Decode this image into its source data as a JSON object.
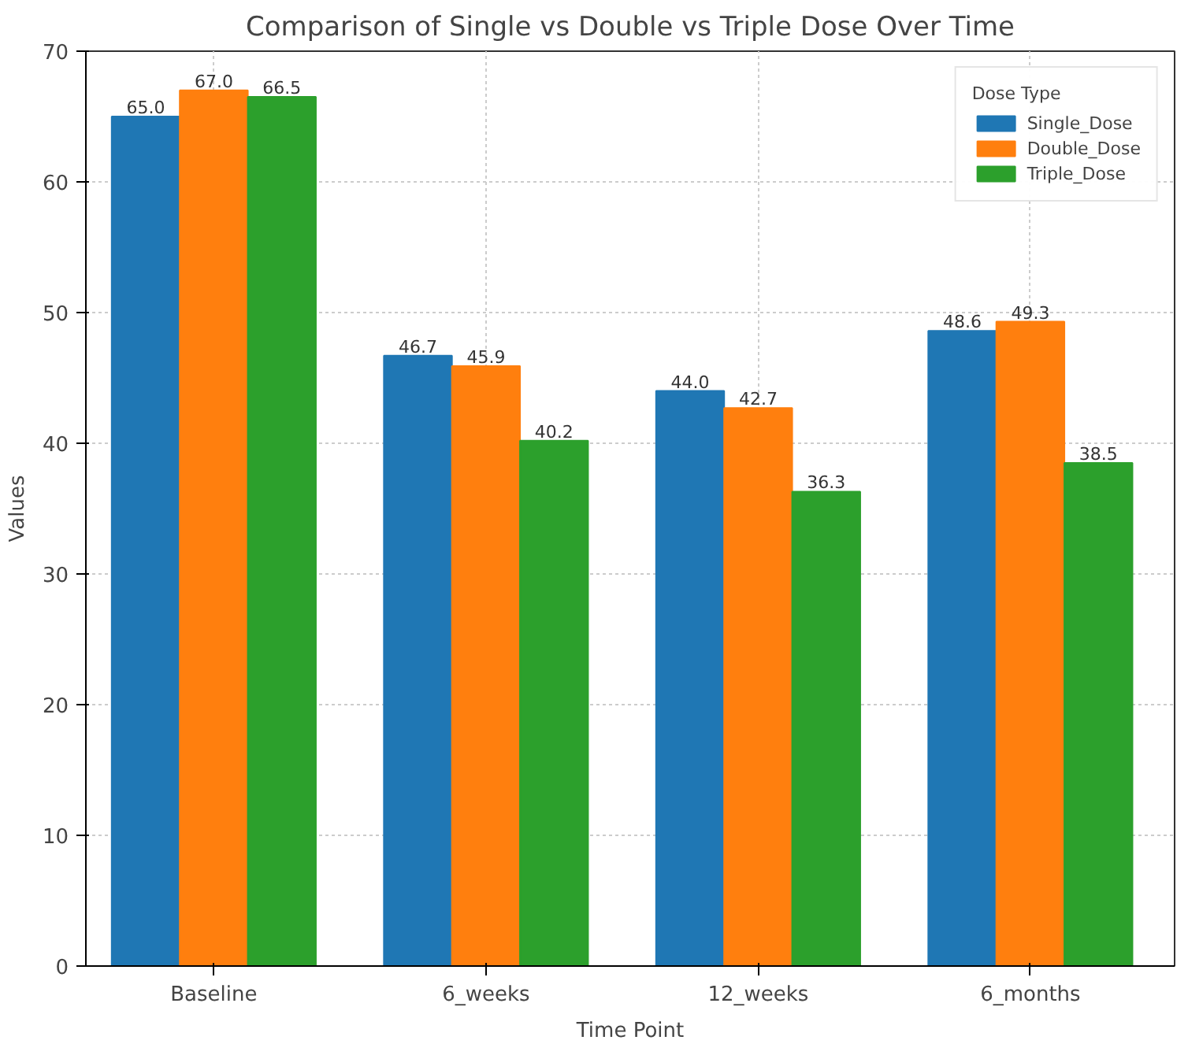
{
  "chart_data": {
    "type": "bar",
    "title": "Comparison of Single vs Double vs Triple Dose Over Time",
    "xlabel": "Time Point",
    "ylabel": "Values",
    "legend_title": "Dose Type",
    "categories": [
      "Baseline",
      "6_weeks",
      "12_weeks",
      "6_months"
    ],
    "series": [
      {
        "name": "Single_Dose",
        "color": "#1f77b4",
        "values": [
          65.0,
          46.7,
          44.0,
          48.6
        ],
        "value_labels": [
          "65.0",
          "46.7",
          "44.0",
          "48.6"
        ]
      },
      {
        "name": "Double_Dose",
        "color": "#ff7f0e",
        "values": [
          67.0,
          45.9,
          42.7,
          49.3
        ],
        "value_labels": [
          "67.0",
          "45.9",
          "42.7",
          "49.3"
        ]
      },
      {
        "name": "Triple_Dose",
        "color": "#2ca02c",
        "values": [
          66.5,
          40.2,
          36.3,
          38.5
        ],
        "value_labels": [
          "66.5",
          "40.2",
          "36.3",
          "38.5"
        ]
      }
    ],
    "ylim": [
      0,
      70
    ],
    "yticks": [
      0,
      10,
      20,
      30,
      40,
      50,
      60,
      70
    ],
    "grid": true,
    "legend": "top right"
  }
}
